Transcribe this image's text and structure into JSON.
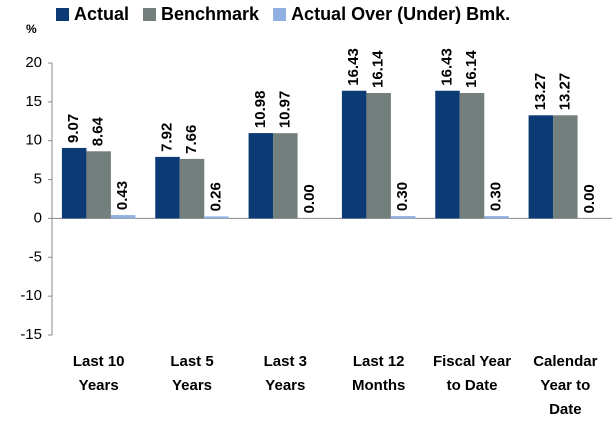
{
  "chart_data": {
    "type": "bar",
    "y_label": "%",
    "categories": [
      [
        "Last 10",
        "Years"
      ],
      [
        "Last 5",
        "Years"
      ],
      [
        "Last 3",
        "Years"
      ],
      [
        "Last 12",
        "Months"
      ],
      [
        "Fiscal Year",
        "to Date"
      ],
      [
        "Calendar",
        "Year to",
        "Date"
      ]
    ],
    "series": [
      {
        "name": "Actual",
        "color": "#0b3a75",
        "values": [
          9.07,
          7.92,
          10.98,
          16.43,
          16.43,
          13.27
        ],
        "value_labels": [
          "9.07",
          "7.92",
          "10.98",
          "16.43",
          "16.43",
          "13.27"
        ]
      },
      {
        "name": "Benchmark",
        "color": "#737f7c",
        "values": [
          8.64,
          7.66,
          10.97,
          16.14,
          16.14,
          13.27
        ],
        "value_labels": [
          "8.64",
          "7.66",
          "10.97",
          "16.14",
          "16.14",
          "13.27"
        ]
      },
      {
        "name": "Actual Over (Under) Bmk.",
        "color": "#8fb0e0",
        "values": [
          0.43,
          0.26,
          0,
          0.3,
          0.3,
          0
        ],
        "value_labels": [
          "0.43",
          "0.26",
          "0.00",
          "0.30",
          "0.30",
          "0.00"
        ]
      }
    ],
    "ylim": [
      -15,
      20
    ],
    "yticks": [
      -15,
      -10,
      -5,
      0,
      5,
      10,
      15,
      20
    ],
    "grid": false,
    "legend": "top"
  }
}
